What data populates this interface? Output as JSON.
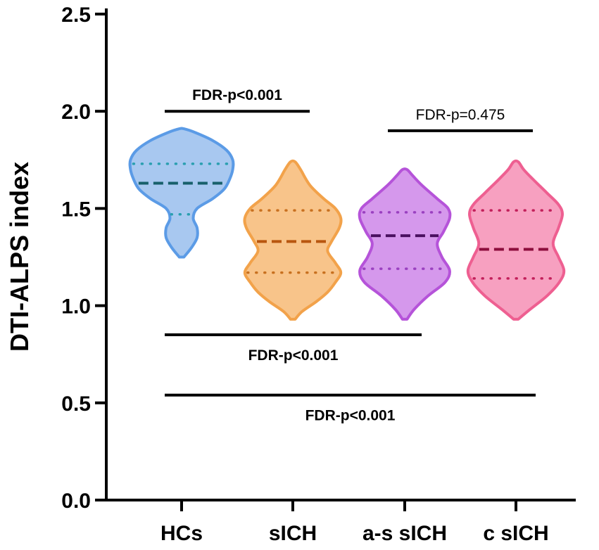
{
  "chart_data": {
    "type": "violin",
    "ylabel": "DTI-ALPS index",
    "ylim": [
      0,
      2.5
    ],
    "yticks": [
      "0.0",
      "0.5",
      "1.0",
      "1.5",
      "2.0",
      "2.5"
    ],
    "categories": [
      "HCs",
      "sICH",
      "a-s sICH",
      "c sICH"
    ],
    "series": [
      {
        "category": "HCs",
        "fill": "#a8c8f0",
        "stroke": "#5b9be6",
        "line_color": "#17606b",
        "quartile_color": "#2a9fb0",
        "min": 1.25,
        "q1": 1.47,
        "median": 1.63,
        "q3": 1.73,
        "max": 1.91,
        "profile": [
          [
            1.25,
            0.03
          ],
          [
            1.3,
            0.13
          ],
          [
            1.35,
            0.2
          ],
          [
            1.4,
            0.2
          ],
          [
            1.45,
            0.15
          ],
          [
            1.5,
            0.2
          ],
          [
            1.55,
            0.4
          ],
          [
            1.6,
            0.55
          ],
          [
            1.65,
            0.62
          ],
          [
            1.7,
            0.66
          ],
          [
            1.75,
            0.66
          ],
          [
            1.8,
            0.58
          ],
          [
            1.85,
            0.4
          ],
          [
            1.89,
            0.18
          ],
          [
            1.91,
            0.03
          ]
        ]
      },
      {
        "category": "sICH",
        "fill": "#f8c48a",
        "stroke": "#f2a24a",
        "line_color": "#b8560f",
        "quartile_color": "#c8701f",
        "min": 0.93,
        "q1": 1.17,
        "median": 1.33,
        "q3": 1.49,
        "max": 1.74,
        "profile": [
          [
            0.93,
            0.03
          ],
          [
            0.97,
            0.12
          ],
          [
            1.02,
            0.3
          ],
          [
            1.07,
            0.45
          ],
          [
            1.12,
            0.55
          ],
          [
            1.17,
            0.62
          ],
          [
            1.22,
            0.55
          ],
          [
            1.28,
            0.45
          ],
          [
            1.33,
            0.5
          ],
          [
            1.4,
            0.6
          ],
          [
            1.45,
            0.62
          ],
          [
            1.5,
            0.55
          ],
          [
            1.55,
            0.4
          ],
          [
            1.62,
            0.22
          ],
          [
            1.7,
            0.1
          ],
          [
            1.74,
            0.03
          ]
        ]
      },
      {
        "category": "a-s sICH",
        "fill": "#d598ec",
        "stroke": "#b553d9",
        "line_color": "#4a1060",
        "quartile_color": "#9a40c0",
        "min": 0.93,
        "q1": 1.19,
        "median": 1.36,
        "q3": 1.48,
        "max": 1.7,
        "profile": [
          [
            0.93,
            0.03
          ],
          [
            0.98,
            0.12
          ],
          [
            1.05,
            0.3
          ],
          [
            1.12,
            0.52
          ],
          [
            1.18,
            0.58
          ],
          [
            1.25,
            0.48
          ],
          [
            1.32,
            0.42
          ],
          [
            1.38,
            0.5
          ],
          [
            1.45,
            0.58
          ],
          [
            1.5,
            0.56
          ],
          [
            1.55,
            0.42
          ],
          [
            1.62,
            0.22
          ],
          [
            1.67,
            0.1
          ],
          [
            1.7,
            0.03
          ]
        ]
      },
      {
        "category": "c sICH",
        "fill": "#f7a0c0",
        "stroke": "#ee5f91",
        "line_color": "#8c0d3c",
        "quartile_color": "#c21f5a",
        "min": 0.93,
        "q1": 1.14,
        "median": 1.29,
        "q3": 1.49,
        "max": 1.74,
        "profile": [
          [
            0.93,
            0.03
          ],
          [
            0.98,
            0.18
          ],
          [
            1.05,
            0.4
          ],
          [
            1.12,
            0.56
          ],
          [
            1.18,
            0.62
          ],
          [
            1.25,
            0.55
          ],
          [
            1.32,
            0.48
          ],
          [
            1.4,
            0.55
          ],
          [
            1.47,
            0.6
          ],
          [
            1.52,
            0.55
          ],
          [
            1.58,
            0.4
          ],
          [
            1.65,
            0.22
          ],
          [
            1.7,
            0.1
          ],
          [
            1.74,
            0.03
          ]
        ]
      }
    ],
    "comparisons": [
      {
        "from": 0,
        "to": 1,
        "y": 2.0,
        "label": "FDR-p<0.001",
        "label_pos": "above",
        "bold": true
      },
      {
        "from": 2,
        "to": 3,
        "y": 1.9,
        "label": "FDR-p=0.475",
        "label_pos": "above",
        "bold": false
      },
      {
        "from": 0,
        "to": 2,
        "y": 0.85,
        "label": "FDR-p<0.001",
        "label_pos": "below",
        "bold": true
      },
      {
        "from": 0,
        "to": 3,
        "y": 0.54,
        "label": "FDR-p<0.001",
        "label_pos": "below",
        "bold": true
      }
    ]
  }
}
